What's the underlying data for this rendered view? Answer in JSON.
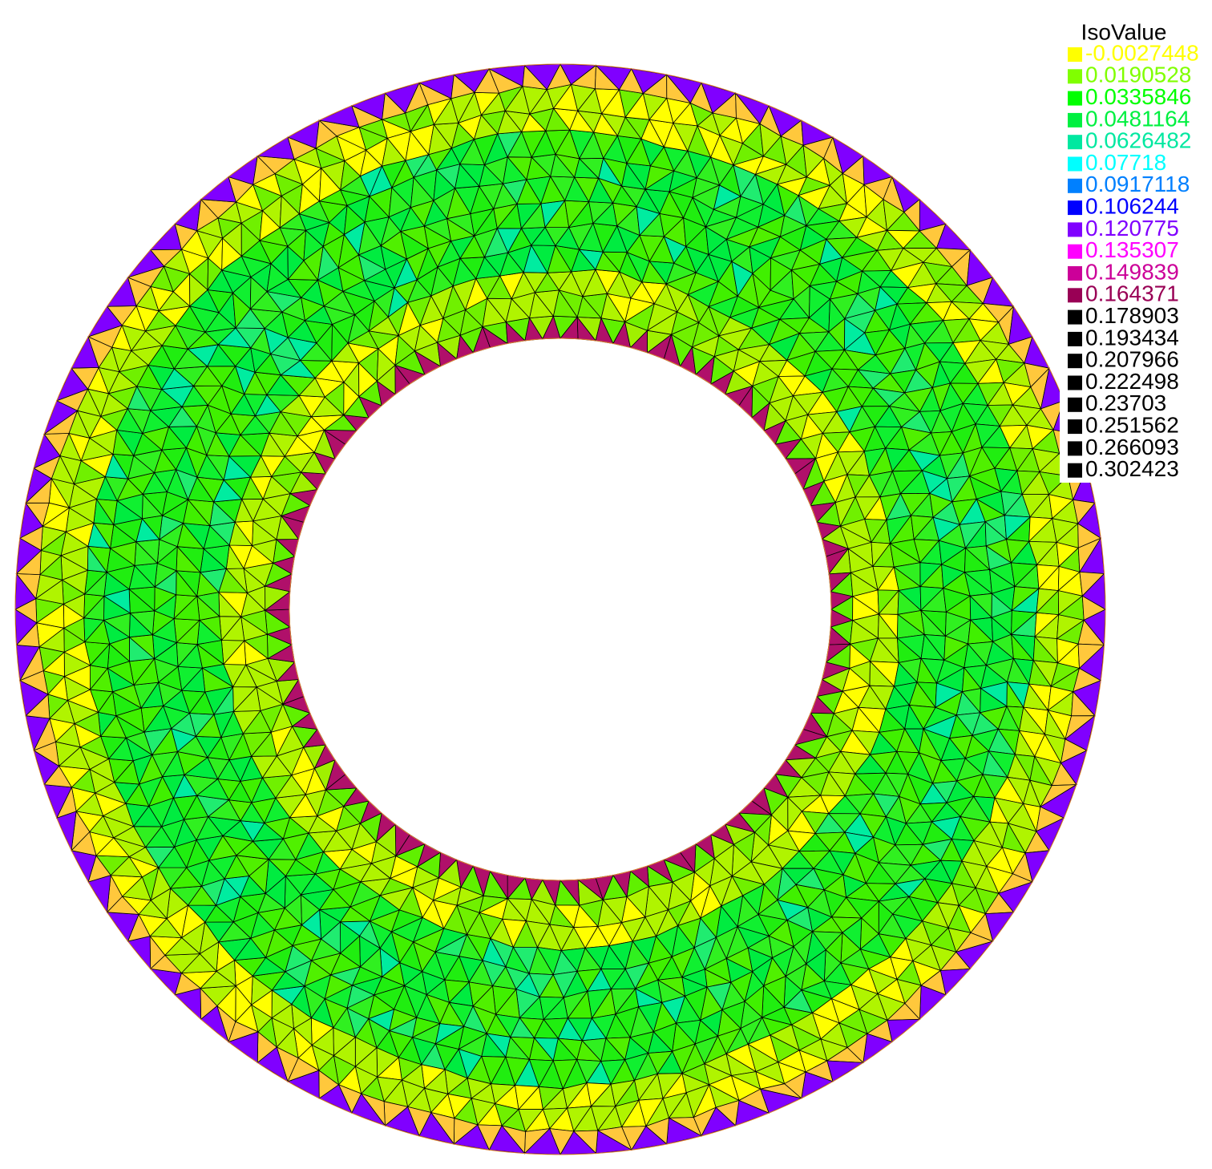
{
  "legend": {
    "title": "IsoValue",
    "entries": [
      {
        "label": "-0.0027448",
        "color": "#ffff00"
      },
      {
        "label": "0.0190528",
        "color": "#80ff00"
      },
      {
        "label": "0.0335846",
        "color": "#00ff00"
      },
      {
        "label": "0.0481164",
        "color": "#00f040"
      },
      {
        "label": "0.0626482",
        "color": "#00e8a0"
      },
      {
        "label": "0.07718",
        "color": "#00ffff"
      },
      {
        "label": "0.0917118",
        "color": "#0080ff"
      },
      {
        "label": "0.106244",
        "color": "#0000ff"
      },
      {
        "label": "0.120775",
        "color": "#8000ff"
      },
      {
        "label": "0.135307",
        "color": "#ff00ff"
      },
      {
        "label": "0.149839",
        "color": "#cc0099"
      },
      {
        "label": "0.164371",
        "color": "#990055"
      },
      {
        "label": "0.178903",
        "color": "#000000"
      },
      {
        "label": "0.193434",
        "color": "#000000"
      },
      {
        "label": "0.207966",
        "color": "#000000"
      },
      {
        "label": "0.222498",
        "color": "#000000"
      },
      {
        "label": "0.23703",
        "color": "#000000"
      },
      {
        "label": "0.251562",
        "color": "#000000"
      },
      {
        "label": "0.266093",
        "color": "#000000"
      },
      {
        "label": "0.302423",
        "color": "#000000"
      }
    ]
  }
}
